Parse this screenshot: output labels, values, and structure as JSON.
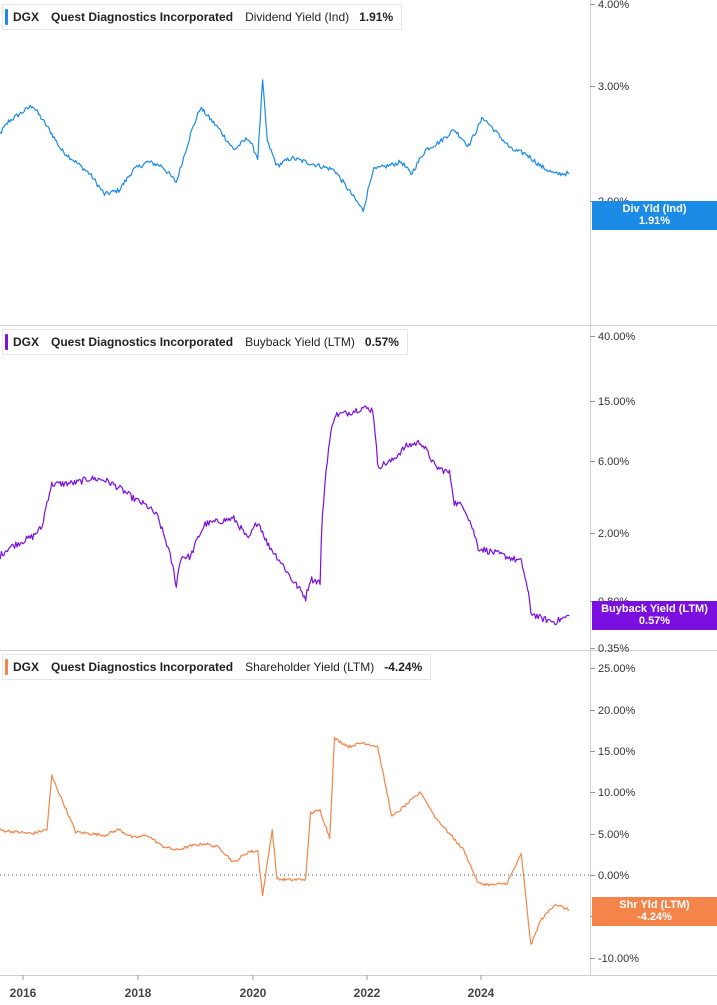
{
  "panels": [
    {
      "ticker": "DGX",
      "company": "Quest Diagnostics Incorporated",
      "metric": "Dividend Yield (Ind)",
      "value": "1.91%",
      "badge_label": "Div Yld (Ind)",
      "badge_value": "1.91%",
      "color": "#1c8be6",
      "y_ticks": [
        "4.00%",
        "3.00%",
        "2.00%"
      ]
    },
    {
      "ticker": "DGX",
      "company": "Quest Diagnostics Incorporated",
      "metric": "Buyback Yield (LTM)",
      "value": "0.57%",
      "badge_label": "Buyback Yield (LTM)",
      "badge_value": "0.57%",
      "color": "#7a0fe0",
      "y_ticks": [
        "40.00%",
        "15.00%",
        "6.00%",
        "2.00%",
        "0.80%",
        "0.35%"
      ]
    },
    {
      "ticker": "DGX",
      "company": "Quest Diagnostics Incorporated",
      "metric": "Shareholder Yield (LTM)",
      "value": "-4.24%",
      "badge_label": "Shr Yld (LTM)",
      "badge_value": "-4.24%",
      "color": "#f5844a",
      "y_ticks": [
        "25.00%",
        "20.00%",
        "15.00%",
        "10.00%",
        "5.00%",
        "0.00%",
        "-5.00%",
        "-10.00%"
      ]
    }
  ],
  "x_axis_labels": [
    "2016",
    "2018",
    "2020",
    "2022",
    "2024"
  ],
  "chart_data": [
    {
      "type": "line",
      "title": "DGX Quest Diagnostics Incorporated Dividend Yield (Ind) 1.91%",
      "ylim": [
        1.3,
        4.0
      ],
      "y_scale": "linear (percent)",
      "series": [
        {
          "name": "Dividend Yield (Ind)",
          "x": [
            "2015-07",
            "2015-10",
            "2016-03",
            "2016-07",
            "2016-09",
            "2016-12",
            "2017-03",
            "2017-06",
            "2017-09",
            "2017-12",
            "2018-03",
            "2018-06",
            "2018-09",
            "2018-12",
            "2019-02",
            "2019-06",
            "2019-09",
            "2019-12",
            "2020-02",
            "2020-03",
            "2020-04",
            "2020-06",
            "2020-09",
            "2020-12",
            "2021-03",
            "2021-06",
            "2021-09",
            "2021-12",
            "2022-02",
            "2022-05",
            "2022-08",
            "2022-10",
            "2023-01",
            "2023-04",
            "2023-07",
            "2023-10",
            "2024-01",
            "2024-04",
            "2024-07",
            "2024-10",
            "2025-01",
            "2025-04",
            "2025-07"
          ],
          "values": [
            2.3,
            2.55,
            2.75,
            2.4,
            2.2,
            2.05,
            1.9,
            1.65,
            1.7,
            1.95,
            2.05,
            2.0,
            1.8,
            2.4,
            2.72,
            2.45,
            2.2,
            2.35,
            2.1,
            3.05,
            2.3,
            2.0,
            2.1,
            2.05,
            2.0,
            1.95,
            1.7,
            1.45,
            1.95,
            2.0,
            2.05,
            1.9,
            2.2,
            2.3,
            2.45,
            2.25,
            2.6,
            2.4,
            2.2,
            2.15,
            2.0,
            1.9,
            1.91
          ]
        }
      ]
    },
    {
      "type": "line",
      "title": "DGX Quest Diagnostics Incorporated Buyback Yield (LTM) 0.57%",
      "ylim": [
        0.35,
        40.0
      ],
      "y_scale": "log",
      "series": [
        {
          "name": "Buyback Yield (LTM)",
          "x": [
            "2015-07",
            "2015-10",
            "2016-03",
            "2016-05",
            "2016-07",
            "2016-12",
            "2017-03",
            "2017-06",
            "2017-09",
            "2017-12",
            "2018-03",
            "2018-05",
            "2018-06",
            "2018-09",
            "2018-10",
            "2018-12",
            "2019-03",
            "2019-06",
            "2019-09",
            "2019-12",
            "2020-02",
            "2020-04",
            "2020-06",
            "2020-09",
            "2020-12",
            "2021-01",
            "2021-03",
            "2021-04",
            "2021-06",
            "2021-09",
            "2021-12",
            "2022-02",
            "2022-03",
            "2022-06",
            "2022-09",
            "2022-12",
            "2023-03",
            "2023-06",
            "2023-07",
            "2023-09",
            "2023-12",
            "2024-03",
            "2024-06",
            "2024-09",
            "2024-11",
            "2025-01",
            "2025-04",
            "2025-07"
          ],
          "values": [
            1.3,
            1.6,
            1.9,
            2.2,
            4.2,
            4.3,
            4.6,
            4.5,
            4.0,
            3.4,
            3.0,
            2.6,
            2.1,
            0.9,
            1.4,
            1.4,
            2.3,
            2.4,
            2.5,
            1.8,
            2.4,
            1.7,
            1.4,
            1.0,
            0.75,
            1.0,
            0.95,
            4.2,
            12.0,
            12.5,
            13.5,
            13.0,
            5.5,
            6.0,
            7.5,
            8.0,
            5.5,
            5.0,
            3.2,
            3.0,
            1.6,
            1.5,
            1.4,
            1.3,
            0.6,
            0.55,
            0.52,
            0.57
          ]
        }
      ]
    },
    {
      "type": "line",
      "title": "DGX Quest Diagnostics Incorporated Shareholder Yield (LTM) -4.24%",
      "ylim": [
        -10.0,
        25.0
      ],
      "y_scale": "linear (percent)",
      "series": [
        {
          "name": "Shareholder Yield (LTM)",
          "x": [
            "2015-07",
            "2015-10",
            "2016-03",
            "2016-06",
            "2016-07",
            "2016-12",
            "2017-03",
            "2017-06",
            "2017-09",
            "2017-12",
            "2018-03",
            "2018-06",
            "2018-09",
            "2018-12",
            "2019-03",
            "2019-06",
            "2019-09",
            "2019-12",
            "2020-02",
            "2020-03",
            "2020-05",
            "2020-06",
            "2020-09",
            "2020-12",
            "2021-01",
            "2021-03",
            "2021-05",
            "2021-06",
            "2021-09",
            "2021-12",
            "2022-03",
            "2022-06",
            "2022-09",
            "2022-12",
            "2023-03",
            "2023-06",
            "2023-09",
            "2023-12",
            "2024-03",
            "2024-06",
            "2024-09",
            "2024-11",
            "2025-01",
            "2025-04",
            "2025-07"
          ],
          "values": [
            5.5,
            5.3,
            5.0,
            5.5,
            12.0,
            5.2,
            5.0,
            4.8,
            5.5,
            4.5,
            4.8,
            3.5,
            3.0,
            3.5,
            3.8,
            3.3,
            1.5,
            2.8,
            2.9,
            -2.5,
            5.5,
            -0.5,
            -0.6,
            -0.5,
            7.5,
            7.8,
            4.5,
            16.5,
            15.5,
            16.0,
            15.5,
            7.0,
            8.5,
            10.0,
            7.0,
            5.0,
            3.0,
            -1.0,
            -1.2,
            -1.0,
            2.5,
            -8.5,
            -5.5,
            -3.5,
            -4.24
          ]
        }
      ]
    }
  ]
}
